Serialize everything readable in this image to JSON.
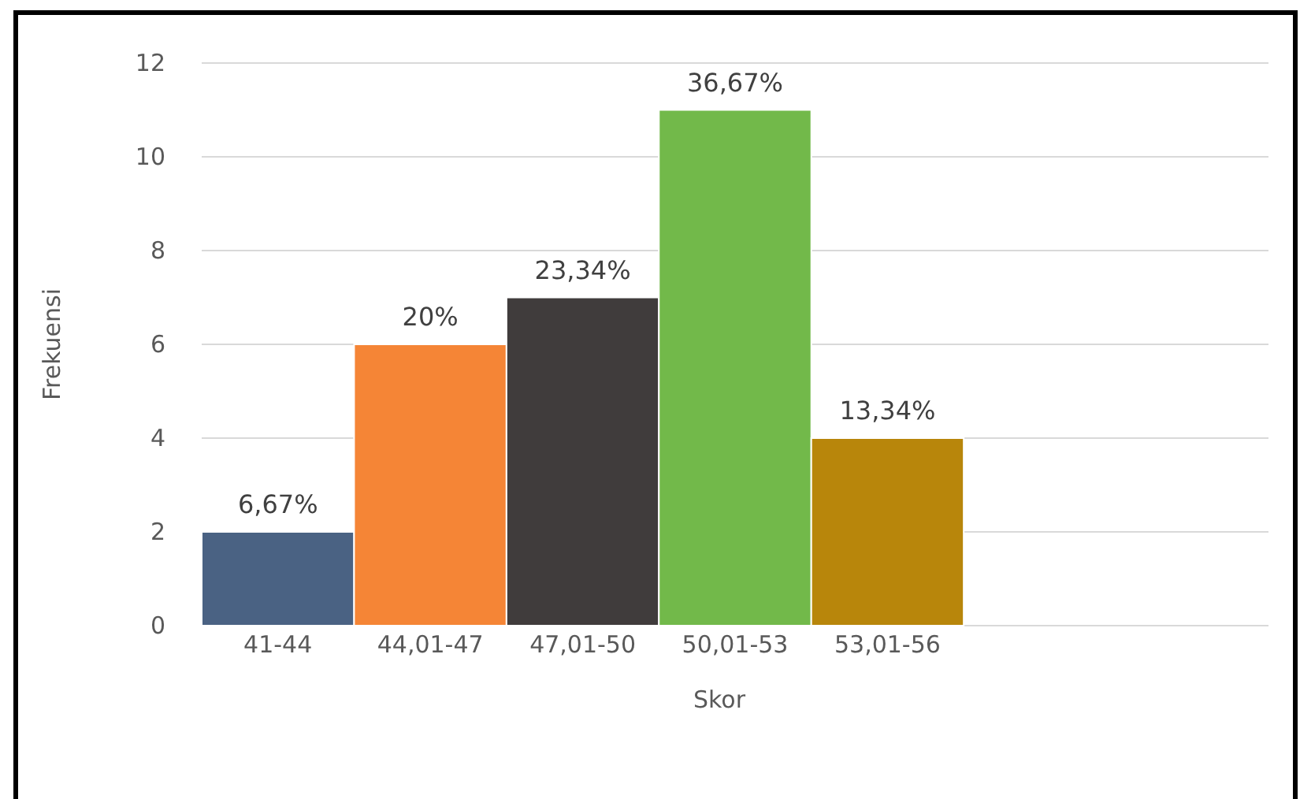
{
  "chart_data": {
    "type": "bar",
    "xlabel": "Skor",
    "ylabel": "Frekuensi",
    "categories": [
      "41-44",
      "44,01-47",
      "47,01-50",
      "50,01-53",
      "53,01-56",
      null,
      null
    ],
    "values": [
      2,
      6,
      7,
      11,
      4,
      null,
      null
    ],
    "colors": [
      "#4a6283",
      "#f58536",
      "#403c3c",
      "#72b94a",
      "#b8860b",
      null,
      null
    ],
    "annotations": [
      {
        "text": "6,67%",
        "x": "41-44",
        "y": 2
      },
      {
        "text": "20%",
        "x": "44,01-47",
        "y": 6
      },
      {
        "text": "23,34%",
        "x": "47,01-50",
        "y": 7
      },
      {
        "text": "36,67%",
        "x": "50,01-53",
        "y": 11
      },
      {
        "text": "13,34%",
        "x": "53,01-56",
        "y": 4
      }
    ],
    "ylim": [
      0,
      12
    ],
    "yticks": [
      0,
      2,
      4,
      6,
      8,
      10,
      12
    ],
    "grid": "y"
  }
}
